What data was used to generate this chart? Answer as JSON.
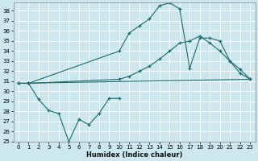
{
  "xlabel": "Humidex (Indice chaleur)",
  "xlim": [
    -0.5,
    23.5
  ],
  "ylim": [
    25,
    38.8
  ],
  "yticks": [
    25,
    26,
    27,
    28,
    29,
    30,
    31,
    32,
    33,
    34,
    35,
    36,
    37,
    38
  ],
  "xticks": [
    0,
    1,
    2,
    3,
    4,
    5,
    6,
    7,
    8,
    9,
    10,
    11,
    12,
    13,
    14,
    15,
    16,
    17,
    18,
    19,
    20,
    21,
    22,
    23
  ],
  "background_color": "#cce8ee",
  "grid_color": "#ffffff",
  "line_color": "#1a6b6b",
  "line1_x": [
    0,
    1,
    2,
    3,
    4,
    5,
    6,
    7,
    8,
    9,
    10
  ],
  "line1_y": [
    30.8,
    30.8,
    29.2,
    28.1,
    27.8,
    25.0,
    27.2,
    26.7,
    27.8,
    29.3,
    29.3
  ],
  "line2_x": [
    0,
    1,
    10,
    11,
    12,
    13,
    14,
    15,
    16,
    17,
    18,
    19,
    20,
    21,
    22,
    23
  ],
  "line2_y": [
    30.8,
    30.8,
    34.0,
    35.8,
    36.5,
    37.2,
    38.5,
    38.8,
    38.2,
    32.3,
    35.3,
    35.3,
    35.0,
    33.0,
    31.8,
    31.2
  ],
  "line3_x": [
    0,
    1,
    10,
    11,
    12,
    13,
    14,
    15,
    16,
    17,
    18,
    19,
    20,
    21,
    22,
    23
  ],
  "line3_y": [
    30.8,
    30.8,
    31.2,
    31.5,
    32.0,
    32.5,
    33.2,
    34.0,
    34.8,
    35.0,
    35.5,
    34.8,
    34.0,
    33.0,
    32.2,
    31.2
  ],
  "line4_x": [
    0,
    23
  ],
  "line4_y": [
    30.8,
    31.2
  ]
}
